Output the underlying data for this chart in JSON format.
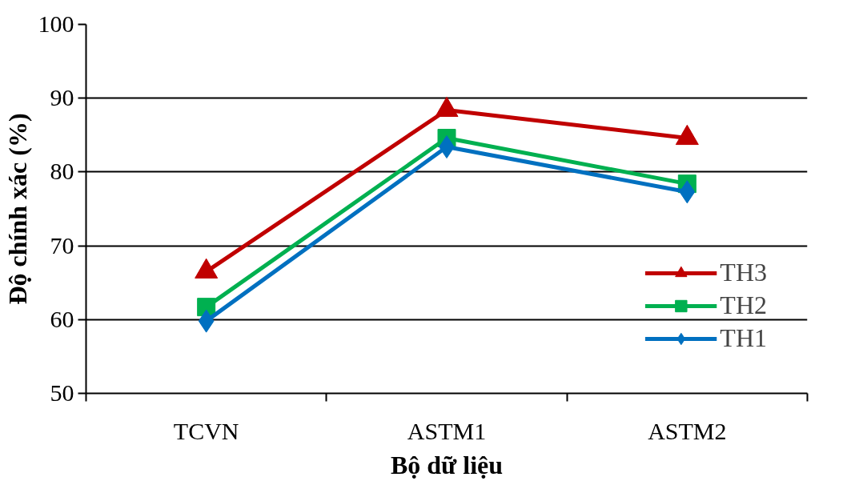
{
  "chart_data": {
    "type": "line",
    "xlabel": "Bộ dữ liệu",
    "ylabel": "Độ chính xác (%)",
    "categories": [
      "TCVN",
      "ASTM1",
      "ASTM2"
    ],
    "series": [
      {
        "name": "TH3",
        "color": "#c00000",
        "marker": "triangle",
        "values": [
          66.5,
          88.4,
          84.6
        ]
      },
      {
        "name": "TH2",
        "color": "#00b050",
        "marker": "square",
        "values": [
          61.7,
          84.6,
          78.4
        ]
      },
      {
        "name": "TH1",
        "color": "#0070c0",
        "marker": "diamond",
        "values": [
          59.8,
          83.4,
          77.3
        ]
      }
    ],
    "ylim": [
      50,
      100
    ],
    "yticks": [
      50,
      60,
      70,
      80,
      90,
      100
    ],
    "grid": "y",
    "legend": "bottom right"
  }
}
